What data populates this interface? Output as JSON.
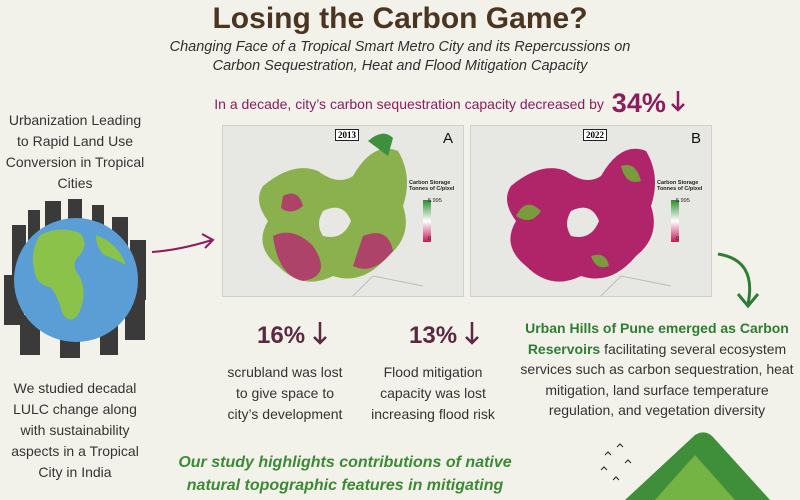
{
  "header": {
    "title": "Losing the Carbon Game?",
    "subtitle": "Changing Face of a Tropical Smart Metro City and its Repercussions on Carbon Sequestration, Heat and Flood Mitigation Capacity"
  },
  "headline": {
    "text": "In a decade, city’s carbon sequestration capacity decreased by",
    "value": "34%"
  },
  "left": {
    "top": "Urbanization Leading to Rapid Land Use Conversion in Tropical Cities",
    "bottom": "We studied decadal LULC change along with sustainability aspects in a Tropical City in India"
  },
  "maps": [
    {
      "year": "2013",
      "panel": "A",
      "legend_title": "Carbon Storage Tonnes of C/pixel",
      "legend_max": "5.995",
      "legend_min": "0"
    },
    {
      "year": "2022",
      "panel": "B",
      "legend_title": "Carbon Storage Tonnes of C/pixel",
      "legend_max": "5.995",
      "legend_min": "0"
    }
  ],
  "stats": [
    {
      "value": "16%",
      "text": "scrubland was lost to give space to city’s development"
    },
    {
      "value": "13%",
      "text": "Flood mitigation capacity was lost increasing flood risk"
    }
  ],
  "right": {
    "highlight": "Urban Hills of Pune emerged as Carbon Reservoirs",
    "text": "facilitating several ecosystem services such as carbon sequestration, heat mitigation, land surface temperature regulation, and vegetation diversity"
  },
  "footer": {
    "text": "Our study highlights contributions of native natural topographic features in mitigating"
  }
}
